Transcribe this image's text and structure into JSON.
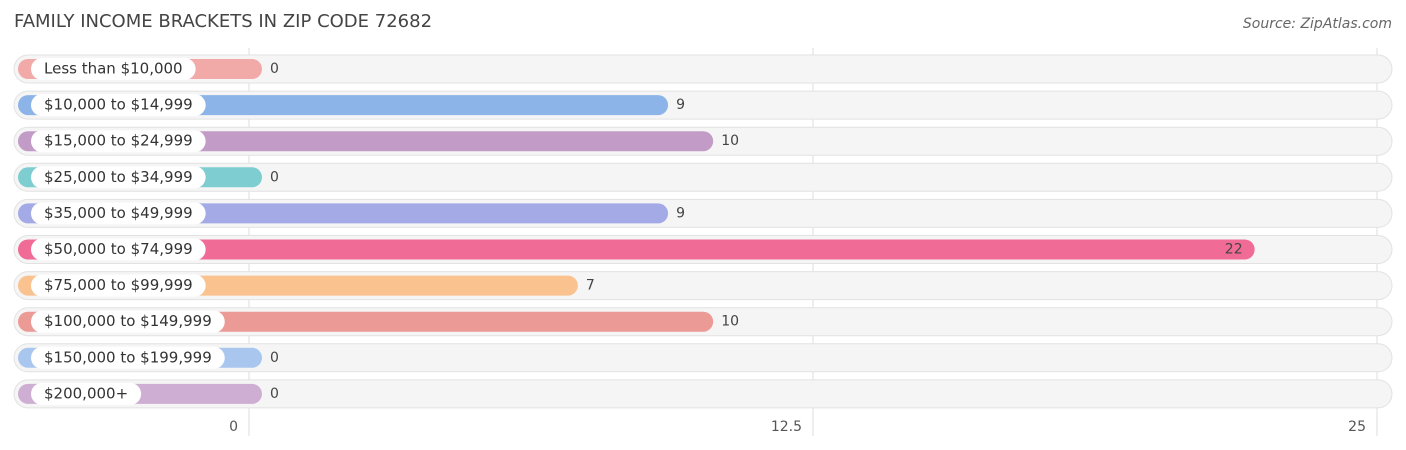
{
  "chart_data": {
    "type": "bar",
    "orientation": "horizontal",
    "title": "FAMILY INCOME BRACKETS IN ZIP CODE 72682",
    "source": "Source: ZipAtlas.com",
    "categories": [
      "Less than $10,000",
      "$10,000 to $14,999",
      "$15,000 to $24,999",
      "$25,000 to $34,999",
      "$35,000 to $49,999",
      "$50,000 to $74,999",
      "$75,000 to $99,999",
      "$100,000 to $149,999",
      "$150,000 to $199,999",
      "$200,000+"
    ],
    "values": [
      0,
      9,
      10,
      0,
      9,
      22,
      7,
      10,
      0,
      0
    ],
    "colors": [
      "#f2aaa8",
      "#8db4e8",
      "#c29bc6",
      "#7dcdd1",
      "#a3aae6",
      "#f06b95",
      "#f9c28e",
      "#eb9a96",
      "#a9c7ee",
      "#cfaed3"
    ],
    "xlim": [
      0,
      25
    ],
    "xticks": [
      0,
      12.5,
      25
    ],
    "grid": true
  }
}
